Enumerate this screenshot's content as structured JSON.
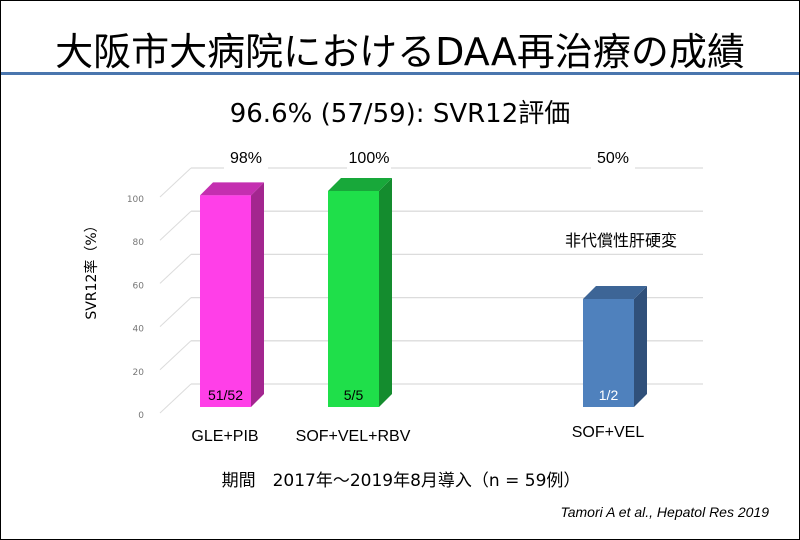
{
  "slide": {
    "title": "大阪市大病院におけるDAA再治療の成績",
    "subtitle": "96.6% (57/59): SVR12評価",
    "period": "期間　2017年～2019年8月導入（n = 59例）",
    "citation": "Tamori A et al., Hepatol Res 2019"
  },
  "chart_data": {
    "type": "bar",
    "title": "96.6% (57/59): SVR12評価",
    "xlabel": "",
    "ylabel": "SVR12率（%）",
    "ylim": [
      0,
      100
    ],
    "yticks": [
      "0",
      "20",
      "40",
      "60",
      "80",
      "100"
    ],
    "grid": true,
    "categories": [
      "GLE+PIB",
      "SOF+VEL+RBV",
      "SOF+VEL"
    ],
    "values": [
      98,
      100,
      50
    ],
    "percent_labels": [
      "98%",
      "100%",
      "50%"
    ],
    "count_labels": [
      "51/52",
      "5/5",
      "1/2"
    ],
    "colors": [
      "#ff3fe8",
      "#1fdf4a",
      "#4f81bd"
    ],
    "side_colors": [
      "#a3268f",
      "#148c2e",
      "#30507a"
    ],
    "top_colors": [
      "#c42fb0",
      "#18a83a",
      "#3d6596"
    ],
    "count_label_colors": [
      "#000000",
      "#000000",
      "#ffffff"
    ],
    "annotation": "非代償性肝硬変"
  }
}
